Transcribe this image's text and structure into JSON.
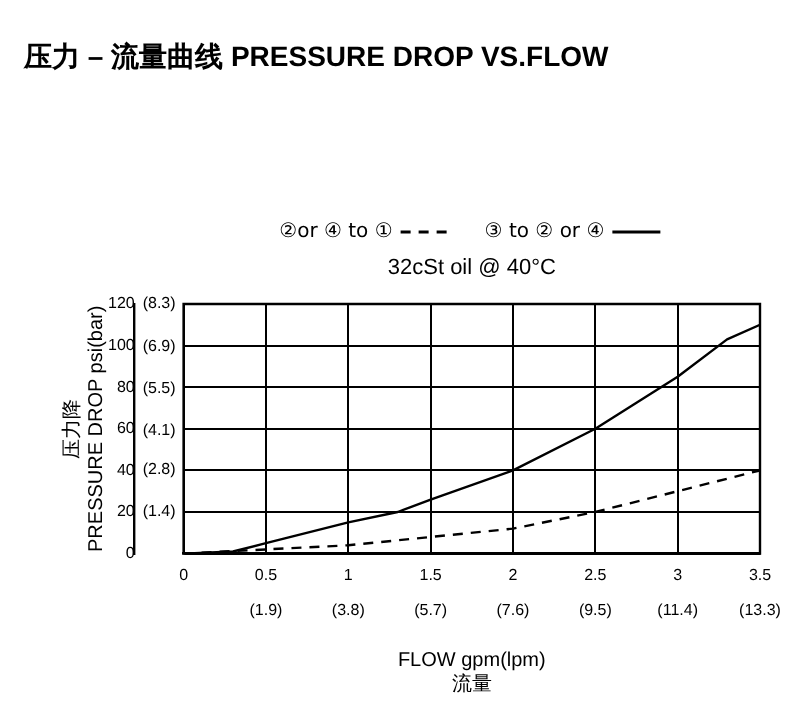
{
  "chart_data": {
    "type": "line",
    "title": "压力 – 流量曲线 PRESSURE DROP VS.FLOW",
    "subtitle": "32cSt oil @ 40°C",
    "xlabel": "FLOW gpm(lpm)\n流量",
    "ylabel": "压力降\nPRESSURE DROP psi(bar)",
    "x": [
      0,
      0.3,
      0.5,
      1,
      1.3,
      1.5,
      2,
      2.5,
      3,
      3.3,
      3.5
    ],
    "series": [
      {
        "name": "②or ④ to ①",
        "color": "#000000",
        "line_style": "dashed",
        "x": [
          0,
          0.5,
          1,
          1.5,
          2,
          2.5,
          3,
          3.5
        ],
        "values": [
          0,
          2,
          4,
          8,
          12,
          20,
          30,
          40
        ]
      },
      {
        "name": "③ to ② or ④",
        "color": "#000000",
        "line_style": "solid",
        "values": [
          0,
          1,
          5,
          15,
          20,
          26,
          40,
          60,
          85,
          103,
          110
        ]
      }
    ],
    "xlim": [
      0,
      3.5
    ],
    "xticks": [
      0,
      0.5,
      1,
      1.5,
      2,
      2.5,
      3,
      3.5
    ],
    "x2lim": [
      0,
      13.3
    ],
    "x2ticks": [
      {
        "value": 1.9,
        "label": "(1.9)"
      },
      {
        "value": 3.8,
        "label": "(3.8)"
      },
      {
        "value": 5.7,
        "label": "(5.7)"
      },
      {
        "value": 7.6,
        "label": "(7.6)"
      },
      {
        "value": 9.5,
        "label": "(9.5)"
      },
      {
        "value": 11.4,
        "label": "(11.4)"
      },
      {
        "value": 13.3,
        "label": "(13.3)"
      }
    ],
    "ylim": [
      0,
      120
    ],
    "yticks": [
      0,
      20,
      40,
      60,
      80,
      100,
      120
    ],
    "y2lim": [
      0,
      8.3
    ],
    "y2ticks": [
      {
        "value": 1.4,
        "label": "(1.4)"
      },
      {
        "value": 2.8,
        "label": "(2.8)"
      },
      {
        "value": 4.1,
        "label": "(4.1)"
      },
      {
        "value": 5.5,
        "label": "(5.5)"
      },
      {
        "value": 6.9,
        "label": "(6.9)"
      },
      {
        "value": 8.3,
        "label": "(8.3)"
      }
    ],
    "grid": true,
    "legend": "top",
    "marker": "none"
  }
}
